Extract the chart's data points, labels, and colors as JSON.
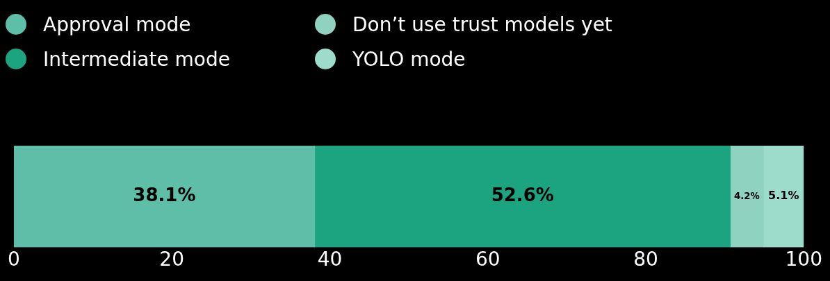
{
  "chart_data": {
    "type": "bar",
    "orientation": "horizontal",
    "stacked": true,
    "categories": [
      null
    ],
    "series": [
      {
        "name": "Approval mode",
        "color": "#5fbea8",
        "values": [
          38.1
        ]
      },
      {
        "name": "Intermediate mode",
        "color": "#1ba47f",
        "values": [
          52.6
        ]
      },
      {
        "name": "Don’t use trust models yet",
        "color": "#8ed2bf",
        "values": [
          4.2
        ]
      },
      {
        "name": "YOLO mode",
        "color": "#9ddcca",
        "values": [
          5.1
        ]
      }
    ],
    "value_labels": [
      [
        "38.1%"
      ],
      [
        "52.6%"
      ],
      [
        "4.2%"
      ],
      [
        "5.1%"
      ]
    ],
    "xlim": [
      0,
      100
    ],
    "xticks": [
      0,
      20,
      40,
      60,
      80,
      100
    ],
    "grid": false,
    "legend": "top left"
  }
}
